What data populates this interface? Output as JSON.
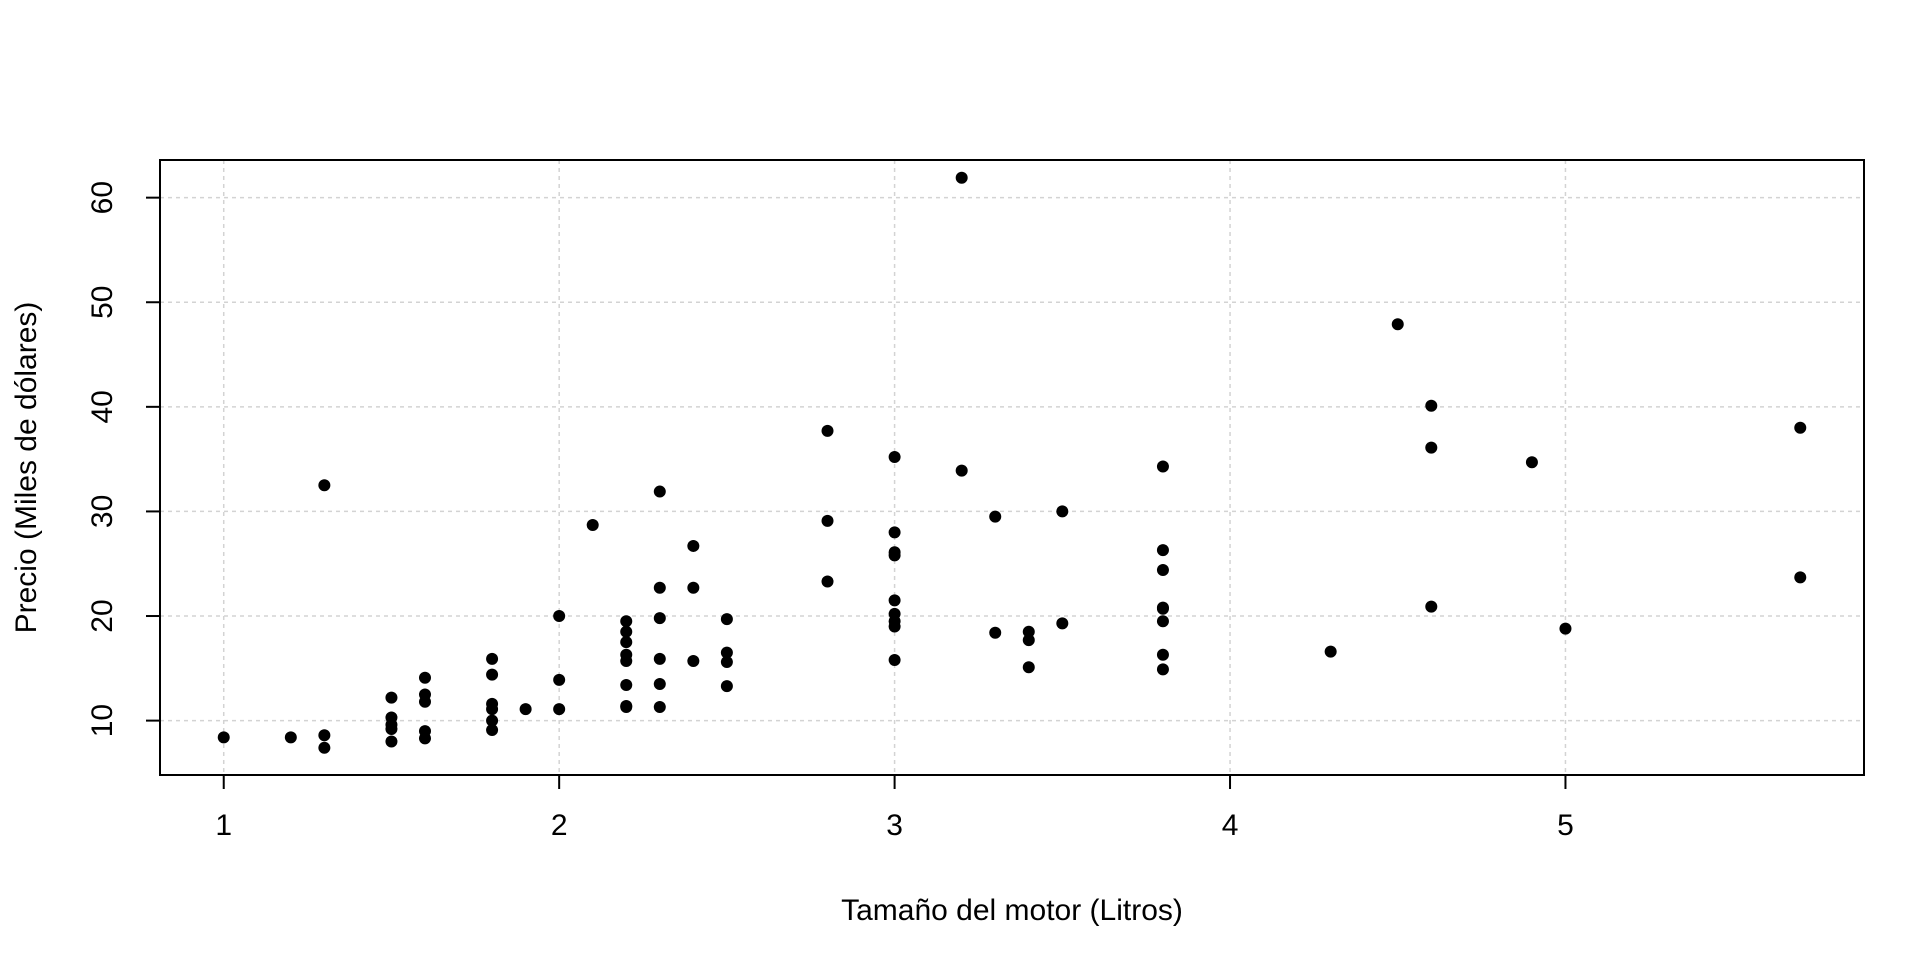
{
  "chart_data": {
    "type": "scatter",
    "title": "",
    "xlabel": "Tamaño del motor (Litros)",
    "ylabel": "Precio (Miles de dólares)",
    "xlim": [
      0.81,
      5.89
    ],
    "ylim": [
      4.8,
      63.6
    ],
    "xticks": [
      1,
      2,
      3,
      4,
      5
    ],
    "yticks": [
      10,
      20,
      30,
      40,
      50,
      60
    ],
    "grid": true,
    "colors": {
      "points": "#000000",
      "grid": "#d3d3d3",
      "frame": "#000000"
    },
    "points": [
      [
        1.0,
        8.4
      ],
      [
        1.2,
        8.4
      ],
      [
        1.3,
        8.6
      ],
      [
        1.3,
        7.4
      ],
      [
        1.3,
        32.5
      ],
      [
        1.5,
        12.2
      ],
      [
        1.5,
        10.3
      ],
      [
        1.5,
        9.6
      ],
      [
        1.5,
        9.2
      ],
      [
        1.5,
        8.0
      ],
      [
        1.6,
        14.1
      ],
      [
        1.6,
        12.5
      ],
      [
        1.6,
        11.8
      ],
      [
        1.6,
        9.0
      ],
      [
        1.6,
        8.3
      ],
      [
        1.8,
        15.9
      ],
      [
        1.8,
        14.4
      ],
      [
        1.8,
        11.6
      ],
      [
        1.8,
        11.1
      ],
      [
        1.8,
        10.0
      ],
      [
        1.8,
        9.1
      ],
      [
        1.9,
        11.1
      ],
      [
        2.0,
        20.0
      ],
      [
        2.0,
        13.9
      ],
      [
        2.0,
        11.1
      ],
      [
        2.1,
        28.7
      ],
      [
        2.2,
        19.5
      ],
      [
        2.2,
        18.5
      ],
      [
        2.2,
        17.5
      ],
      [
        2.2,
        16.3
      ],
      [
        2.2,
        15.7
      ],
      [
        2.2,
        13.4
      ],
      [
        2.2,
        11.4
      ],
      [
        2.2,
        11.3
      ],
      [
        2.3,
        31.9
      ],
      [
        2.3,
        22.7
      ],
      [
        2.3,
        19.8
      ],
      [
        2.3,
        15.9
      ],
      [
        2.3,
        13.5
      ],
      [
        2.3,
        11.3
      ],
      [
        2.4,
        26.7
      ],
      [
        2.4,
        22.7
      ],
      [
        2.4,
        15.7
      ],
      [
        2.5,
        19.7
      ],
      [
        2.5,
        16.5
      ],
      [
        2.5,
        15.6
      ],
      [
        2.5,
        13.3
      ],
      [
        2.8,
        37.7
      ],
      [
        2.8,
        29.1
      ],
      [
        2.8,
        23.3
      ],
      [
        3.0,
        35.2
      ],
      [
        3.0,
        28.0
      ],
      [
        3.0,
        26.1
      ],
      [
        3.0,
        25.8
      ],
      [
        3.0,
        21.5
      ],
      [
        3.0,
        20.2
      ],
      [
        3.0,
        19.5
      ],
      [
        3.0,
        19.0
      ],
      [
        3.0,
        15.8
      ],
      [
        3.2,
        61.9
      ],
      [
        3.2,
        33.9
      ],
      [
        3.3,
        29.5
      ],
      [
        3.3,
        18.4
      ],
      [
        3.4,
        18.5
      ],
      [
        3.4,
        17.7
      ],
      [
        3.4,
        15.1
      ],
      [
        3.5,
        30.0
      ],
      [
        3.5,
        19.3
      ],
      [
        3.8,
        34.3
      ],
      [
        3.8,
        26.3
      ],
      [
        3.8,
        24.4
      ],
      [
        3.8,
        20.8
      ],
      [
        3.8,
        20.7
      ],
      [
        3.8,
        19.5
      ],
      [
        3.8,
        16.3
      ],
      [
        3.8,
        14.9
      ],
      [
        4.3,
        16.6
      ],
      [
        4.5,
        47.9
      ],
      [
        4.6,
        40.1
      ],
      [
        4.6,
        36.1
      ],
      [
        4.6,
        20.9
      ],
      [
        4.9,
        34.7
      ],
      [
        5.0,
        18.8
      ],
      [
        5.7,
        38.0
      ],
      [
        5.7,
        23.7
      ]
    ]
  }
}
